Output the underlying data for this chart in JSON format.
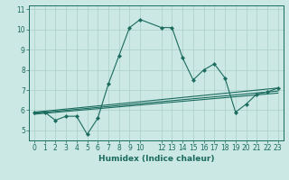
{
  "title": "",
  "xlabel": "Humidex (Indice chaleur)",
  "ylabel": "",
  "background_color": "#cce8e4",
  "grid_color": "#aacfca",
  "line_color": "#1a6b5e",
  "xlim": [
    -0.5,
    23.5
  ],
  "ylim": [
    4.5,
    11.2
  ],
  "yticks": [
    5,
    6,
    7,
    8,
    9,
    10,
    11
  ],
  "xticks": [
    0,
    1,
    2,
    3,
    4,
    5,
    6,
    7,
    8,
    9,
    10,
    12,
    13,
    14,
    15,
    16,
    17,
    18,
    19,
    20,
    21,
    22,
    23
  ],
  "series": [
    {
      "x": [
        0,
        1,
        2,
        3,
        4,
        5,
        6,
        7,
        8,
        9,
        10,
        12,
        13,
        14,
        15,
        16,
        17,
        18,
        19,
        20,
        21,
        22,
        23
      ],
      "y": [
        5.9,
        5.9,
        5.5,
        5.7,
        5.7,
        4.8,
        5.6,
        7.3,
        8.7,
        10.1,
        10.5,
        10.1,
        10.1,
        8.6,
        7.5,
        8.0,
        8.3,
        7.6,
        5.9,
        6.3,
        6.8,
        6.9,
        7.1
      ],
      "marker": true
    },
    {
      "x": [
        0,
        23
      ],
      "y": [
        5.9,
        7.1
      ],
      "marker": false
    },
    {
      "x": [
        0,
        23
      ],
      "y": [
        5.85,
        6.95
      ],
      "marker": false
    },
    {
      "x": [
        0,
        23
      ],
      "y": [
        5.8,
        6.85
      ],
      "marker": false
    }
  ],
  "tick_fontsize": 5.5,
  "xlabel_fontsize": 6.5,
  "xlabel_fontweight": "bold"
}
